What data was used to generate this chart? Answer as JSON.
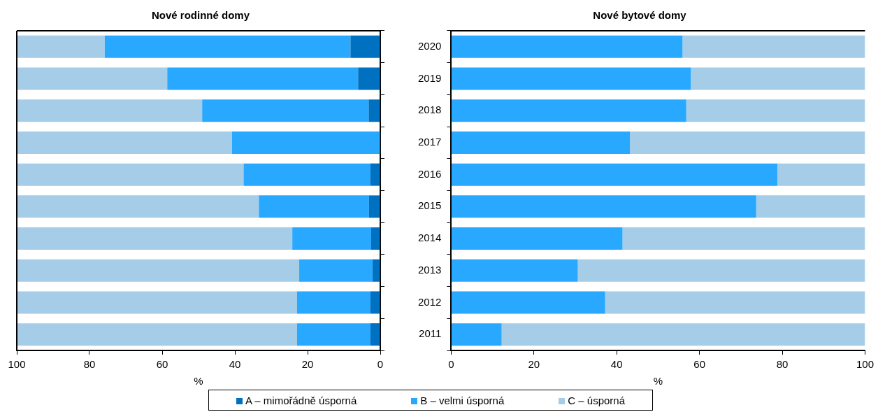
{
  "chart_data": [
    {
      "type": "bar",
      "title": "Nové rodinné domy",
      "orientation": "horizontal",
      "stacked": true,
      "xlabel": "%",
      "categories": [
        "2020",
        "2019",
        "2018",
        "2017",
        "2016",
        "2015",
        "2014",
        "2013",
        "2012",
        "2011"
      ],
      "xlim": [
        100,
        0
      ],
      "xticks": [
        100,
        80,
        60,
        40,
        20,
        0
      ],
      "tick_labels": "x",
      "legend": "bottom",
      "series": [
        {
          "name": "A – mimořádně úsporná",
          "color": "#0070c0",
          "values": [
            8.2,
            6.1,
            3.2,
            0,
            2.7,
            3.1,
            2.5,
            2.1,
            2.7,
            2.7
          ]
        },
        {
          "name": "B – velmi úsporná",
          "color": "#29a8ff",
          "values": [
            67.6,
            52.5,
            45.8,
            40.8,
            34.9,
            30.3,
            21.7,
            20.2,
            20.2,
            20.2
          ]
        },
        {
          "name": "C – úsporná",
          "color": "#a6cde8",
          "values": [
            24.2,
            41.4,
            51,
            59.2,
            62.4,
            66.6,
            75.8,
            77.7,
            77.1,
            77.1
          ]
        }
      ]
    },
    {
      "type": "bar",
      "title": "Nové bytové domy",
      "orientation": "horizontal",
      "stacked": true,
      "xlabel": "%",
      "categories": [
        "2020",
        "2019",
        "2018",
        "2017",
        "2016",
        "2015",
        "2014",
        "2013",
        "2012",
        "2011"
      ],
      "xlim": [
        0,
        100
      ],
      "xticks": [
        0,
        20,
        40,
        60,
        80,
        100
      ],
      "series": [
        {
          "name": "B – velmi úsporná",
          "color": "#29a8ff",
          "values": [
            55.9,
            57.9,
            56.8,
            43.2,
            78.8,
            73.7,
            41.4,
            30.6,
            37.2,
            12.2
          ]
        },
        {
          "name": "C – úsporná",
          "color": "#a6cde8",
          "values": [
            44.1,
            42.1,
            43.2,
            56.8,
            21.2,
            26.3,
            58.6,
            69.4,
            62.8,
            87.8
          ]
        }
      ]
    }
  ]
}
